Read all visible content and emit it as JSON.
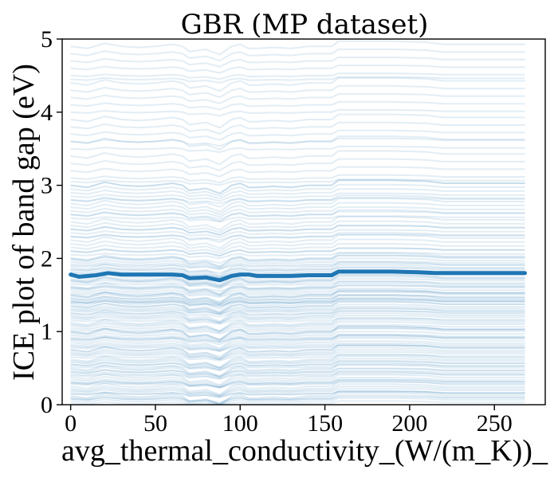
{
  "chart_data": {
    "type": "line",
    "title": "GBR (MP dataset)",
    "xlabel": "avg_thermal_conductivity_(W/(m_K))_",
    "ylabel": "ICE plot of band gap (eV)",
    "xlim": [
      -5,
      280
    ],
    "ylim": [
      0,
      5
    ],
    "xticks": [
      0,
      50,
      100,
      150,
      200,
      250
    ],
    "yticks": [
      0,
      1,
      2,
      3,
      4,
      5
    ],
    "xtick_labels": [
      "0",
      "50",
      "100",
      "150",
      "200",
      "250"
    ],
    "ytick_labels": [
      "0",
      "1",
      "2",
      "3",
      "4",
      "5"
    ],
    "grid": false,
    "legend": "none",
    "ice_color": "#1f77b4",
    "pdp_color": "#1f77b4",
    "ice": {
      "x_grid": [
        0,
        10,
        20,
        30,
        40,
        50,
        60,
        66,
        70,
        80,
        88,
        95,
        100,
        105,
        110,
        120,
        130,
        140,
        150,
        154,
        158,
        170,
        190,
        210,
        220,
        240,
        268
      ],
      "baselines": [
        0.02,
        0.05,
        0.08,
        0.1,
        0.12,
        0.15,
        0.18,
        0.2,
        0.22,
        0.25,
        0.28,
        0.3,
        0.32,
        0.35,
        0.38,
        0.4,
        0.42,
        0.45,
        0.48,
        0.5,
        0.52,
        0.55,
        0.58,
        0.6,
        0.62,
        0.65,
        0.68,
        0.7,
        0.72,
        0.75,
        0.78,
        0.8,
        0.82,
        0.85,
        0.88,
        0.9,
        0.92,
        0.95,
        0.98,
        1.0,
        1.02,
        1.05,
        1.08,
        1.1,
        1.12,
        1.15,
        1.18,
        1.2,
        1.22,
        1.25,
        1.28,
        1.3,
        1.32,
        1.35,
        1.38,
        1.4,
        1.42,
        1.45,
        1.48,
        1.5,
        1.52,
        1.55,
        1.58,
        1.6,
        1.62,
        1.65,
        1.68,
        1.7,
        1.72,
        1.75,
        1.78,
        1.8,
        1.82,
        1.85,
        1.88,
        1.9,
        1.92,
        1.95,
        1.98,
        2.0,
        2.05,
        2.1,
        2.15,
        2.2,
        2.25,
        2.3,
        2.35,
        2.4,
        2.45,
        2.5,
        2.55,
        2.6,
        2.65,
        2.7,
        2.75,
        2.8,
        2.85,
        2.9,
        2.95,
        3.0,
        3.05,
        3.1,
        3.2,
        3.3,
        3.4,
        3.5,
        3.6,
        3.7,
        3.8,
        3.9,
        4.0,
        4.1,
        4.2,
        4.3,
        4.4,
        4.5,
        4.6,
        4.7,
        4.8,
        4.9,
        0.08,
        0.3,
        0.55,
        0.75,
        1.0,
        1.25,
        1.4,
        1.45,
        1.5,
        1.7,
        1.85,
        2.1,
        2.3,
        2.6,
        3.0,
        0.15,
        0.45,
        0.9,
        1.35,
        1.42,
        1.6,
        2.0,
        2.4,
        2.8,
        3.6,
        4.45
      ],
      "shape": [
        0,
        -0.02,
        0.03,
        0.0,
        -0.01,
        0.0,
        0.02,
        0.0,
        -0.05,
        -0.03,
        -0.08,
        0.0,
        0.02,
        -0.02,
        -0.02,
        -0.01,
        -0.02,
        0.0,
        0.0,
        0.0,
        0.05,
        0.05,
        0.05,
        0.04,
        0.02,
        0.02,
        0.02
      ]
    },
    "pdp": {
      "x": [
        0,
        5,
        15,
        22,
        30,
        45,
        60,
        66,
        70,
        80,
        88,
        95,
        100,
        105,
        110,
        120,
        130,
        140,
        150,
        154,
        158,
        170,
        190,
        205,
        215,
        230,
        268
      ],
      "y": [
        1.78,
        1.75,
        1.77,
        1.8,
        1.78,
        1.78,
        1.78,
        1.77,
        1.73,
        1.74,
        1.7,
        1.76,
        1.78,
        1.78,
        1.76,
        1.76,
        1.76,
        1.77,
        1.77,
        1.77,
        1.82,
        1.82,
        1.82,
        1.81,
        1.8,
        1.8,
        1.8
      ]
    }
  }
}
